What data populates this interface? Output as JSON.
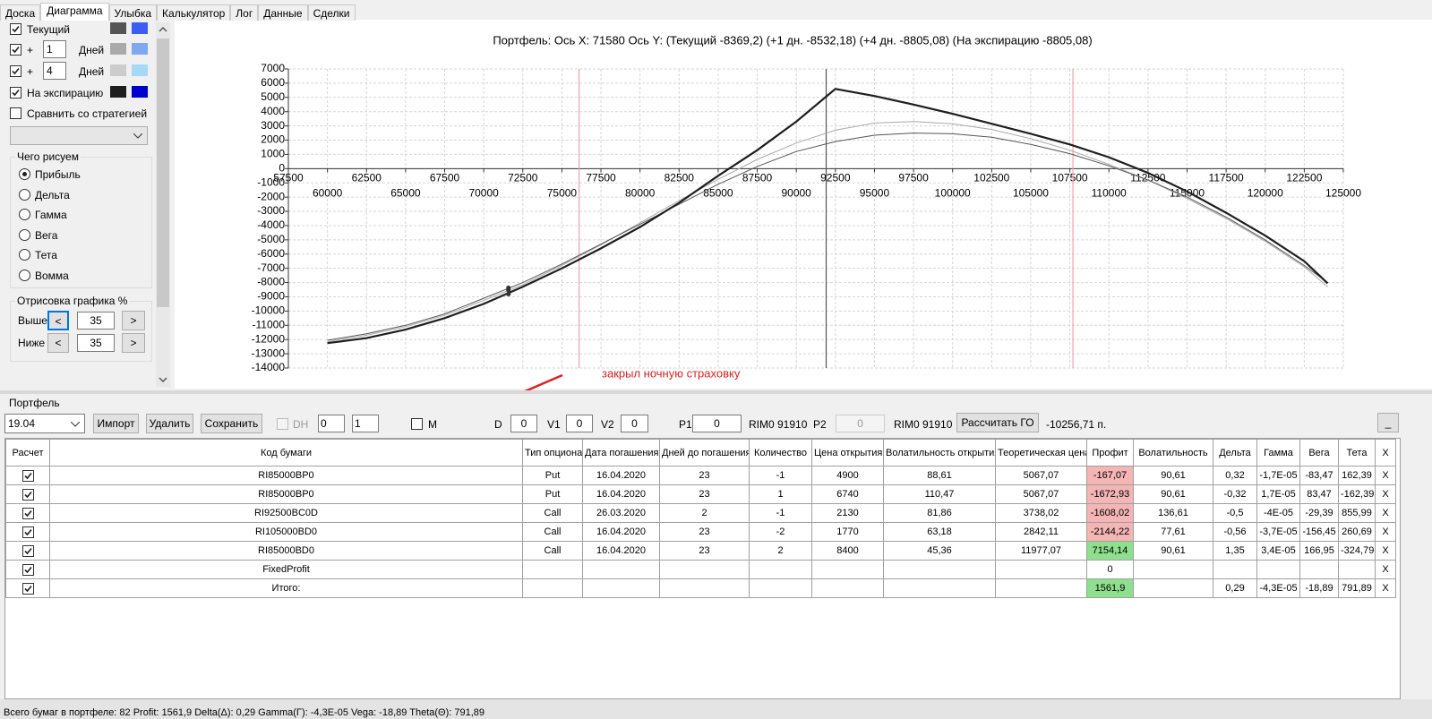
{
  "tabs": [
    "Доска",
    "Диаграмма",
    "Улыбка",
    "Калькулятор",
    "Лог",
    "Данные",
    "Сделки"
  ],
  "active_tab": 1,
  "chart_controls": {
    "compare_label": "Сравнить со стратегией",
    "compare_checked": false,
    "draw_group": {
      "title": "Чего рисуем",
      "options": [
        "Прибыль",
        "Дельта",
        "Гамма",
        "Вега",
        "Тета",
        "Вомма"
      ],
      "selected": 0
    },
    "range_group": {
      "title": "Отрисовка графика %",
      "prev": "<",
      "next": ">",
      "rows": [
        {
          "label": "Выше",
          "value": "35"
        },
        {
          "label": "Ниже",
          "value": "35"
        }
      ]
    }
  },
  "chart_data": {
    "type": "line",
    "title": "Портфель: Ось X: 71580 Ось Y:  (Текущий -8369,2)  (+1 дн. -8532,18)  (+4 дн. -8805,08)  (На экспирацию -8805,08)",
    "x": [
      60000,
      62500,
      65000,
      67500,
      70000,
      72500,
      75000,
      77500,
      80000,
      82500,
      85000,
      87500,
      90000,
      92500,
      95000,
      97500,
      100000,
      102500,
      105000,
      107500,
      110000,
      112500,
      115000,
      117500,
      120000,
      122500,
      124000
    ],
    "series": [
      {
        "name": "Текущий",
        "visible": true,
        "color": "#555555",
        "alt_color": "#3a5ef2",
        "width": 1,
        "values": [
          -12050,
          -11600,
          -11000,
          -10200,
          -9100,
          -8000,
          -6700,
          -5300,
          -3900,
          -2500,
          -1100,
          150,
          1200,
          1900,
          2350,
          2500,
          2450,
          2200,
          1700,
          1050,
          200,
          -800,
          -2000,
          -3400,
          -5000,
          -6800,
          -8000
        ]
      },
      {
        "name": "+",
        "days": "1",
        "days_unit": "Дней",
        "visible": true,
        "color": "#aaaaaa",
        "alt_color": "#7ea9ef",
        "width": 1,
        "values": [
          -12150,
          -11700,
          -11100,
          -10300,
          -9250,
          -8150,
          -6800,
          -5350,
          -3800,
          -2250,
          -750,
          650,
          1800,
          2700,
          3200,
          3300,
          3150,
          2750,
          2100,
          1300,
          300,
          -800,
          -2100,
          -3500,
          -5100,
          -6900,
          -8300
        ]
      },
      {
        "name": "+",
        "days": "4",
        "days_unit": "Дней",
        "visible": true,
        "color": "#cccccc",
        "alt_color": "#a8d8f8",
        "width": 1,
        "values": [
          -12250,
          -11900,
          -11300,
          -10500,
          -9500,
          -8300,
          -7000,
          -5600,
          -4100,
          -2400,
          -500,
          1300,
          3300,
          5600,
          5100,
          4500,
          3850,
          3150,
          2450,
          1700,
          800,
          -300,
          -1600,
          -3100,
          -4700,
          -6500,
          -8050
        ]
      },
      {
        "name": "На экспирацию",
        "visible": true,
        "color": "#1e1e1e",
        "alt_color": "#0000cc",
        "width": 2.2,
        "values": [
          -12250,
          -11900,
          -11300,
          -10500,
          -9500,
          -8300,
          -7000,
          -5600,
          -4100,
          -2400,
          -500,
          1300,
          3300,
          5600,
          5100,
          4500,
          3850,
          3150,
          2450,
          1700,
          800,
          -300,
          -1600,
          -3100,
          -4700,
          -6500,
          -8050
        ]
      }
    ],
    "cursor": {
      "x": 71580,
      "values": [
        -8369.2,
        -8532.18,
        -8805.08,
        -8805.08
      ]
    },
    "vlines": [
      {
        "value": 91910,
        "color": "#555555"
      },
      {
        "value": 76100,
        "color": "#f3a3a8"
      },
      {
        "value": 107700,
        "color": "#f3a3a8"
      }
    ],
    "xlim": [
      57500,
      125000
    ],
    "ylim": [
      -14000,
      7000
    ],
    "xticks": [
      57500,
      60000,
      62500,
      65000,
      67500,
      70000,
      72500,
      75000,
      77500,
      80000,
      82500,
      85000,
      87500,
      90000,
      92500,
      95000,
      97500,
      100000,
      102500,
      105000,
      107500,
      110000,
      112500,
      115000,
      117500,
      120000,
      122500,
      125000
    ],
    "yticks": [
      -14000,
      -13000,
      -12000,
      -11000,
      -10000,
      -9000,
      -8000,
      -7000,
      -6000,
      -5000,
      -4000,
      -3000,
      -2000,
      -1000,
      0,
      1000,
      2000,
      3000,
      4000,
      5000,
      6000,
      7000
    ],
    "grid": true
  },
  "annotation": "закрыл ночную страховку",
  "portfolio": {
    "title": "Портфель",
    "date": "19.04",
    "buttons": [
      "Импорт",
      "Удалить",
      "Сохранить"
    ],
    "dh_label": "DH",
    "dh_checked": false,
    "spin1": "0",
    "spin2": "1",
    "m_label": "M",
    "m_checked": false,
    "fields": [
      {
        "label": "D",
        "value": "0"
      },
      {
        "label": "V1",
        "value": "0"
      },
      {
        "label": "V2",
        "value": "0"
      },
      {
        "label": "P1",
        "value": "0"
      }
    ],
    "p1_ref": "RIM0 91910",
    "p2_label": "P2",
    "p2_value": "0",
    "p2_ref": "RIM0 91910",
    "calc_button": "Рассчитать ГО",
    "margin": "-10256,71 п.",
    "minimize": "_"
  },
  "table": {
    "headers": [
      "Расчет",
      "Код бумаги",
      "Тип опциона",
      "Дата погашения",
      "Дней до погашения",
      "Количество",
      "Цена открытия",
      "Волатильность открытия",
      "Теоретическая цена",
      "Профит",
      "Волатильность",
      "Дельта",
      "Гамма",
      "Вега",
      "Тета",
      "X"
    ],
    "remove_label": "X",
    "rows": [
      {
        "calc": true,
        "cells": [
          "RI85000BP0",
          "Put",
          "16.04.2020",
          "23",
          "-1",
          "4900",
          "88,61",
          "5067,07",
          "-167,07",
          "90,61",
          "0,32",
          "-1,7E-05",
          "-83,47",
          "162,39"
        ]
      },
      {
        "calc": true,
        "cells": [
          "RI85000BP0",
          "Put",
          "16.04.2020",
          "23",
          "1",
          "6740",
          "110,47",
          "5067,07",
          "-1672,93",
          "90,61",
          "-0,32",
          "1,7E-05",
          "83,47",
          "-162,39"
        ]
      },
      {
        "calc": true,
        "cells": [
          "RI92500BC0D",
          "Call",
          "26.03.2020",
          "2",
          "-1",
          "2130",
          "81,86",
          "3738,02",
          "-1608,02",
          "136,61",
          "-0,5",
          "-4E-05",
          "-29,39",
          "855,99"
        ]
      },
      {
        "calc": true,
        "cells": [
          "RI105000BD0",
          "Call",
          "16.04.2020",
          "23",
          "-2",
          "1770",
          "63,18",
          "2842,11",
          "-2144,22",
          "77,61",
          "-0,56",
          "-3,7E-05",
          "-156,45",
          "260,69"
        ]
      },
      {
        "calc": true,
        "cells": [
          "RI85000BD0",
          "Call",
          "16.04.2020",
          "23",
          "2",
          "8400",
          "45,36",
          "11977,07",
          "7154,14",
          "90,61",
          "1,35",
          "3,4E-05",
          "166,95",
          "-324,79"
        ]
      },
      {
        "calc": true,
        "cells": [
          "FixedProfit",
          null,
          null,
          null,
          null,
          null,
          null,
          null,
          "0",
          null,
          null,
          null,
          null,
          null
        ]
      },
      {
        "calc": true,
        "cells": [
          "Итого:",
          null,
          null,
          null,
          null,
          null,
          null,
          null,
          "1561,9",
          null,
          "0,29",
          "-4,3E-05",
          "-18,89",
          "791,89"
        ]
      }
    ]
  },
  "status_bar": "Всего бумаг в портфеле: 82     Profit: 1561,9  Delta(Δ): 0,29  Gamma(Γ): -4,3E-05  Vega: -18,89  Theta(Θ): 791,89"
}
